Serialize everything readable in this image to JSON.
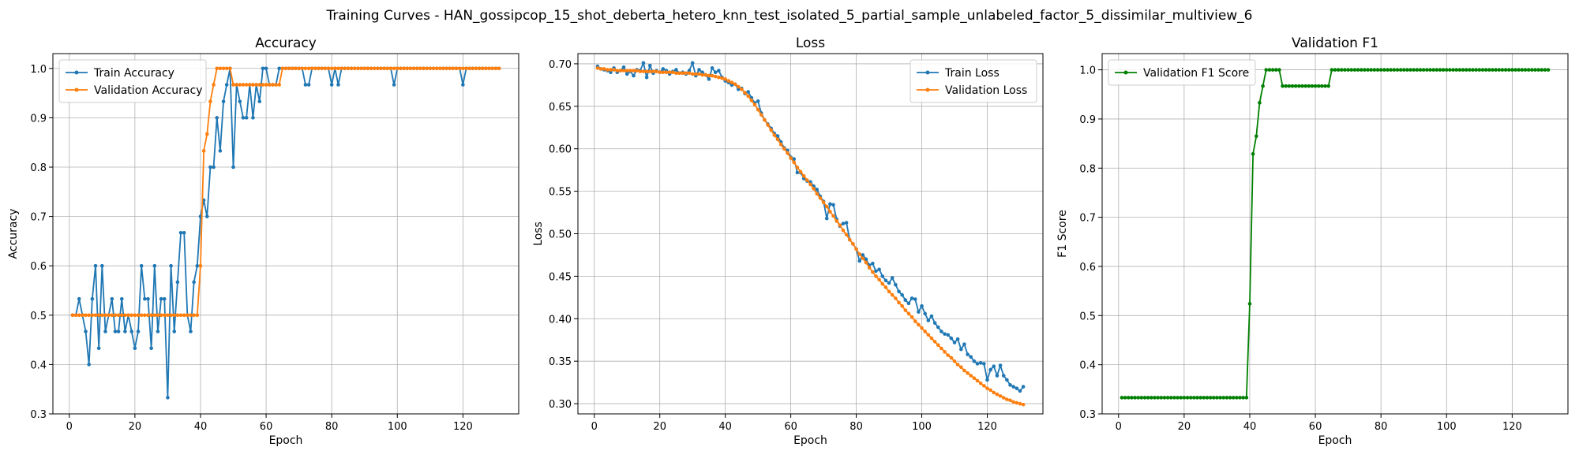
{
  "figure": {
    "suptitle": "Training Curves - HAN_gossipcop_15_shot_deberta_hetero_knn_test_isolated_5_partial_sample_unlabeled_factor_5_dissimilar_multiview_6"
  },
  "chart_data": [
    {
      "type": "line",
      "title": "Accuracy",
      "xlabel": "Epoch",
      "ylabel": "Accuracy",
      "xlim": [
        -5,
        137
      ],
      "ylim": [
        0.3,
        1.03
      ],
      "xticks": [
        0,
        20,
        40,
        60,
        80,
        100,
        120
      ],
      "yticks": [
        0.3,
        0.4,
        0.5,
        0.6,
        0.7,
        0.8,
        0.9,
        1.0
      ],
      "xtick_labels": [
        "0",
        "20",
        "40",
        "60",
        "80",
        "100",
        "120"
      ],
      "ytick_labels": [
        "0.3",
        "0.4",
        "0.5",
        "0.6",
        "0.7",
        "0.8",
        "0.9",
        "1.0"
      ],
      "grid": true,
      "legend": "upper-left",
      "x_start": 1,
      "series": [
        {
          "name": "Train Accuracy",
          "color": "#1f77b4",
          "values": [
            0.5,
            0.5,
            0.533,
            0.5,
            0.467,
            0.4,
            0.533,
            0.6,
            0.433,
            0.6,
            0.467,
            0.5,
            0.533,
            0.467,
            0.467,
            0.533,
            0.467,
            0.5,
            0.467,
            0.433,
            0.467,
            0.6,
            0.533,
            0.533,
            0.433,
            0.6,
            0.467,
            0.533,
            0.533,
            0.333,
            0.6,
            0.467,
            0.567,
            0.667,
            0.667,
            0.5,
            0.467,
            0.567,
            0.6,
            0.7,
            0.733,
            0.7,
            0.8,
            0.8,
            0.9,
            0.833,
            0.933,
            0.967,
            1.0,
            0.8,
            0.967,
            0.933,
            0.9,
            0.9,
            0.967,
            0.9,
            0.967,
            0.933,
            1.0,
            1.0,
            0.967,
            0.967,
            0.967,
            1.0,
            1.0,
            1.0,
            1.0,
            1.0,
            1.0,
            1.0,
            1.0,
            0.967,
            0.967,
            1.0,
            1.0,
            1.0,
            1.0,
            1.0,
            1.0,
            0.967,
            1.0,
            0.967,
            1.0,
            1.0,
            1.0,
            1.0,
            1.0,
            1.0,
            1.0,
            1.0,
            1.0,
            1.0,
            1.0,
            1.0,
            1.0,
            1.0,
            1.0,
            1.0,
            0.967,
            1.0,
            1.0,
            1.0,
            1.0,
            1.0,
            1.0,
            1.0,
            1.0,
            1.0,
            1.0,
            1.0,
            1.0,
            1.0,
            1.0,
            1.0,
            1.0,
            1.0,
            1.0,
            1.0,
            1.0,
            0.967,
            1.0,
            1.0,
            1.0,
            1.0,
            1.0,
            1.0,
            1.0,
            1.0,
            1.0,
            1.0,
            1.0
          ]
        },
        {
          "name": "Validation Accuracy",
          "color": "#ff7f0e",
          "values": [
            0.5,
            0.5,
            0.5,
            0.5,
            0.5,
            0.5,
            0.5,
            0.5,
            0.5,
            0.5,
            0.5,
            0.5,
            0.5,
            0.5,
            0.5,
            0.5,
            0.5,
            0.5,
            0.5,
            0.5,
            0.5,
            0.5,
            0.5,
            0.5,
            0.5,
            0.5,
            0.5,
            0.5,
            0.5,
            0.5,
            0.5,
            0.5,
            0.5,
            0.5,
            0.5,
            0.5,
            0.5,
            0.5,
            0.5,
            0.6,
            0.833,
            0.867,
            0.933,
            0.967,
            1.0,
            1.0,
            1.0,
            1.0,
            1.0,
            0.967,
            0.967,
            0.967,
            0.967,
            0.967,
            0.967,
            0.967,
            0.967,
            0.967,
            0.967,
            0.967,
            0.967,
            0.967,
            0.967,
            0.967,
            1.0,
            1.0,
            1.0,
            1.0,
            1.0,
            1.0,
            1.0,
            1.0,
            1.0,
            1.0,
            1.0,
            1.0,
            1.0,
            1.0,
            1.0,
            1.0,
            1.0,
            1.0,
            1.0,
            1.0,
            1.0,
            1.0,
            1.0,
            1.0,
            1.0,
            1.0,
            1.0,
            1.0,
            1.0,
            1.0,
            1.0,
            1.0,
            1.0,
            1.0,
            1.0,
            1.0,
            1.0,
            1.0,
            1.0,
            1.0,
            1.0,
            1.0,
            1.0,
            1.0,
            1.0,
            1.0,
            1.0,
            1.0,
            1.0,
            1.0,
            1.0,
            1.0,
            1.0,
            1.0,
            1.0,
            1.0,
            1.0,
            1.0,
            1.0,
            1.0,
            1.0,
            1.0,
            1.0,
            1.0,
            1.0,
            1.0,
            1.0
          ]
        }
      ]
    },
    {
      "type": "line",
      "title": "Loss",
      "xlabel": "Epoch",
      "ylabel": "Loss",
      "xlim": [
        -5,
        137
      ],
      "ylim": [
        0.288,
        0.712
      ],
      "xticks": [
        0,
        20,
        40,
        60,
        80,
        100,
        120
      ],
      "yticks": [
        0.3,
        0.35,
        0.4,
        0.45,
        0.5,
        0.55,
        0.6,
        0.65,
        0.7
      ],
      "xtick_labels": [
        "0",
        "20",
        "40",
        "60",
        "80",
        "100",
        "120"
      ],
      "ytick_labels": [
        "0.30",
        "0.35",
        "0.40",
        "0.45",
        "0.50",
        "0.55",
        "0.60",
        "0.65",
        "0.70"
      ],
      "grid": true,
      "legend": "upper-right",
      "x_start": 1,
      "series": [
        {
          "name": "Train Loss",
          "color": "#1f77b4",
          "values": [
            0.697,
            0.694,
            0.693,
            0.692,
            0.69,
            0.695,
            0.69,
            0.692,
            0.696,
            0.688,
            0.691,
            0.686,
            0.693,
            0.692,
            0.701,
            0.684,
            0.698,
            0.689,
            0.692,
            0.69,
            0.694,
            0.692,
            0.688,
            0.691,
            0.693,
            0.689,
            0.69,
            0.688,
            0.692,
            0.701,
            0.686,
            0.693,
            0.69,
            0.687,
            0.682,
            0.695,
            0.69,
            0.692,
            0.684,
            0.68,
            0.678,
            0.675,
            0.676,
            0.67,
            0.671,
            0.665,
            0.667,
            0.66,
            0.654,
            0.656,
            0.642,
            0.634,
            0.629,
            0.624,
            0.618,
            0.615,
            0.608,
            0.601,
            0.598,
            0.59,
            0.588,
            0.572,
            0.572,
            0.565,
            0.562,
            0.561,
            0.556,
            0.552,
            0.544,
            0.538,
            0.518,
            0.535,
            0.534,
            0.517,
            0.509,
            0.512,
            0.513,
            0.493,
            0.488,
            0.482,
            0.468,
            0.475,
            0.47,
            0.463,
            0.465,
            0.456,
            0.458,
            0.45,
            0.445,
            0.442,
            0.448,
            0.44,
            0.432,
            0.428,
            0.422,
            0.418,
            0.424,
            0.423,
            0.408,
            0.415,
            0.406,
            0.398,
            0.403,
            0.395,
            0.39,
            0.385,
            0.382,
            0.381,
            0.377,
            0.372,
            0.376,
            0.364,
            0.37,
            0.358,
            0.355,
            0.35,
            0.347,
            0.348,
            0.347,
            0.328,
            0.34,
            0.344,
            0.333,
            0.345,
            0.333,
            0.328,
            0.322,
            0.32,
            0.318,
            0.315,
            0.32
          ]
        },
        {
          "name": "Validation Loss",
          "color": "#ff7f0e",
          "values": [
            0.695,
            0.694,
            0.694,
            0.693,
            0.693,
            0.693,
            0.692,
            0.692,
            0.692,
            0.692,
            0.692,
            0.692,
            0.692,
            0.691,
            0.691,
            0.691,
            0.691,
            0.691,
            0.691,
            0.69,
            0.69,
            0.69,
            0.69,
            0.69,
            0.689,
            0.689,
            0.689,
            0.689,
            0.689,
            0.688,
            0.688,
            0.688,
            0.687,
            0.687,
            0.686,
            0.686,
            0.685,
            0.684,
            0.683,
            0.682,
            0.68,
            0.678,
            0.676,
            0.673,
            0.67,
            0.666,
            0.662,
            0.657,
            0.652,
            0.646,
            0.64,
            0.634,
            0.628,
            0.622,
            0.616,
            0.611,
            0.605,
            0.6,
            0.595,
            0.589,
            0.584,
            0.578,
            0.573,
            0.568,
            0.563,
            0.558,
            0.553,
            0.547,
            0.542,
            0.537,
            0.532,
            0.526,
            0.521,
            0.515,
            0.51,
            0.504,
            0.499,
            0.493,
            0.488,
            0.482,
            0.476,
            0.471,
            0.466,
            0.46,
            0.455,
            0.45,
            0.446,
            0.441,
            0.437,
            0.432,
            0.428,
            0.424,
            0.419,
            0.415,
            0.41,
            0.406,
            0.402,
            0.397,
            0.393,
            0.389,
            0.385,
            0.381,
            0.377,
            0.373,
            0.369,
            0.365,
            0.361,
            0.357,
            0.354,
            0.35,
            0.346,
            0.343,
            0.339,
            0.336,
            0.333,
            0.33,
            0.327,
            0.324,
            0.321,
            0.318,
            0.316,
            0.313,
            0.311,
            0.309,
            0.307,
            0.305,
            0.304,
            0.302,
            0.301,
            0.3,
            0.299
          ]
        }
      ]
    },
    {
      "type": "line",
      "title": "Validation F1",
      "xlabel": "Epoch",
      "ylabel": "F1 Score",
      "xlim": [
        -5,
        137
      ],
      "ylim": [
        0.3,
        1.033
      ],
      "xticks": [
        0,
        20,
        40,
        60,
        80,
        100,
        120
      ],
      "yticks": [
        0.3,
        0.4,
        0.5,
        0.6,
        0.7,
        0.8,
        0.9,
        1.0
      ],
      "xtick_labels": [
        "0",
        "20",
        "40",
        "60",
        "80",
        "100",
        "120"
      ],
      "ytick_labels": [
        "0.3",
        "0.4",
        "0.5",
        "0.6",
        "0.7",
        "0.8",
        "0.9",
        "1.0"
      ],
      "grid": true,
      "legend": "upper-left",
      "x_start": 1,
      "series": [
        {
          "name": "Validation F1 Score",
          "color": "#008000",
          "values": [
            0.333,
            0.333,
            0.333,
            0.333,
            0.333,
            0.333,
            0.333,
            0.333,
            0.333,
            0.333,
            0.333,
            0.333,
            0.333,
            0.333,
            0.333,
            0.333,
            0.333,
            0.333,
            0.333,
            0.333,
            0.333,
            0.333,
            0.333,
            0.333,
            0.333,
            0.333,
            0.333,
            0.333,
            0.333,
            0.333,
            0.333,
            0.333,
            0.333,
            0.333,
            0.333,
            0.333,
            0.333,
            0.333,
            0.333,
            0.524,
            0.829,
            0.865,
            0.933,
            0.967,
            1.0,
            1.0,
            1.0,
            1.0,
            1.0,
            0.967,
            0.967,
            0.967,
            0.967,
            0.967,
            0.967,
            0.967,
            0.967,
            0.967,
            0.967,
            0.967,
            0.967,
            0.967,
            0.967,
            0.967,
            1.0,
            1.0,
            1.0,
            1.0,
            1.0,
            1.0,
            1.0,
            1.0,
            1.0,
            1.0,
            1.0,
            1.0,
            1.0,
            1.0,
            1.0,
            1.0,
            1.0,
            1.0,
            1.0,
            1.0,
            1.0,
            1.0,
            1.0,
            1.0,
            1.0,
            1.0,
            1.0,
            1.0,
            1.0,
            1.0,
            1.0,
            1.0,
            1.0,
            1.0,
            1.0,
            1.0,
            1.0,
            1.0,
            1.0,
            1.0,
            1.0,
            1.0,
            1.0,
            1.0,
            1.0,
            1.0,
            1.0,
            1.0,
            1.0,
            1.0,
            1.0,
            1.0,
            1.0,
            1.0,
            1.0,
            1.0,
            1.0,
            1.0,
            1.0,
            1.0,
            1.0,
            1.0,
            1.0,
            1.0,
            1.0,
            1.0,
            1.0
          ]
        }
      ]
    }
  ]
}
